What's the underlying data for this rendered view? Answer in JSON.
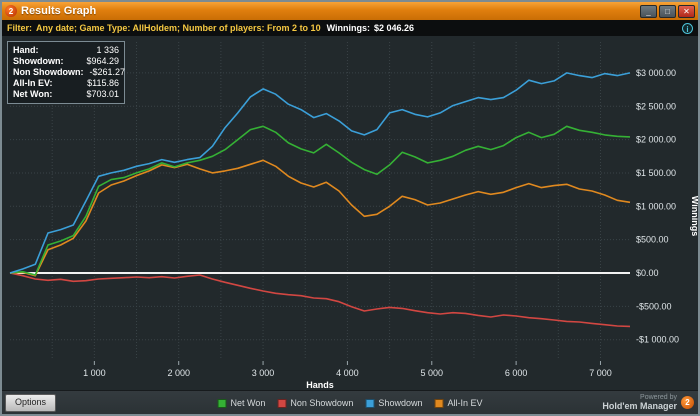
{
  "window": {
    "title": "Results Graph",
    "logo": "2",
    "buttons": {
      "minimize": "_",
      "maximize": "□",
      "close": "✕"
    }
  },
  "filter": {
    "label": "Filter:",
    "criteria": "Any date; Game Type: AllHoldem; Number of players: From 2 to 10",
    "winnings_label": "Winnings:",
    "winnings_value": "$2 046.26",
    "info_icon": "i"
  },
  "stats": {
    "rows": [
      {
        "label": "Hand:",
        "value": "1 336"
      },
      {
        "label": "Showdown:",
        "value": "$964.29"
      },
      {
        "label": "Non Showdown:",
        "value": "-$261.27"
      },
      {
        "label": "All-In EV:",
        "value": "$115.86"
      },
      {
        "label": "Net Won:",
        "value": "$703.01"
      }
    ]
  },
  "chart_data": {
    "type": "line",
    "title": "",
    "xlabel": "Hands",
    "ylabel": "Winnings",
    "xlim": [
      0,
      7350
    ],
    "ylim": [
      -1250,
      3450
    ],
    "grid": true,
    "zero_line": true,
    "legend_position": "bottom",
    "x_ticks": [
      1000,
      2000,
      3000,
      4000,
      5000,
      6000,
      7000
    ],
    "x_tick_labels": [
      "1 000",
      "2 000",
      "3 000",
      "4 000",
      "5 000",
      "6 000",
      "7 000"
    ],
    "y_ticks": [
      3000,
      2500,
      2000,
      1500,
      1000,
      500,
      0,
      -500,
      -1000
    ],
    "y_tick_labels": [
      "$3 000.00",
      "$2 500.00",
      "$2 000.00",
      "$1 500.00",
      "$1 000.00",
      "$500.00",
      "$0.00",
      "-$500.00",
      "-$1 000.00"
    ],
    "colors": {
      "grid": "#3a4347",
      "zero_line": "#f2f2f2",
      "background": "#22292c"
    },
    "draw_order": [
      1,
      3,
      0,
      2
    ],
    "series": [
      {
        "name": "Net Won",
        "color": "#35b135",
        "x": [
          0,
          150,
          300,
          450,
          600,
          750,
          900,
          1050,
          1200,
          1350,
          1500,
          1650,
          1800,
          1950,
          2100,
          2250,
          2400,
          2550,
          2700,
          2850,
          3000,
          3150,
          3300,
          3450,
          3600,
          3750,
          3900,
          4050,
          4200,
          4350,
          4500,
          4650,
          4800,
          4950,
          5100,
          5250,
          5400,
          5550,
          5700,
          5850,
          6000,
          6150,
          6300,
          6450,
          6600,
          6750,
          6900,
          7050,
          7200,
          7350
        ],
        "y": [
          0,
          20,
          -30,
          420,
          480,
          560,
          850,
          1300,
          1400,
          1430,
          1500,
          1560,
          1650,
          1590,
          1650,
          1690,
          1750,
          1850,
          2000,
          2150,
          2200,
          2110,
          1950,
          1860,
          1800,
          1930,
          1800,
          1660,
          1550,
          1480,
          1620,
          1810,
          1740,
          1650,
          1690,
          1750,
          1840,
          1900,
          1850,
          1910,
          2030,
          2110,
          2030,
          2080,
          2200,
          2140,
          2110,
          2070,
          2050,
          2040
        ]
      },
      {
        "name": "Non Showdown",
        "color": "#d24742",
        "x": [
          0,
          150,
          300,
          450,
          600,
          750,
          900,
          1050,
          1200,
          1350,
          1500,
          1650,
          1800,
          1950,
          2100,
          2250,
          2400,
          2550,
          2700,
          2850,
          3000,
          3150,
          3300,
          3450,
          3600,
          3750,
          3900,
          4050,
          4200,
          4350,
          4500,
          4650,
          4800,
          4950,
          5100,
          5250,
          5400,
          5550,
          5700,
          5850,
          6000,
          6150,
          6300,
          6450,
          6600,
          6750,
          6900,
          7050,
          7200,
          7350
        ],
        "y": [
          0,
          -40,
          -90,
          -110,
          -95,
          -125,
          -115,
          -90,
          -80,
          -70,
          -60,
          -70,
          -55,
          -75,
          -50,
          -30,
          -90,
          -140,
          -185,
          -230,
          -270,
          -305,
          -325,
          -340,
          -375,
          -385,
          -430,
          -505,
          -570,
          -540,
          -515,
          -530,
          -565,
          -595,
          -615,
          -595,
          -605,
          -635,
          -660,
          -630,
          -645,
          -670,
          -685,
          -705,
          -725,
          -735,
          -755,
          -775,
          -795,
          -800
        ]
      },
      {
        "name": "Showdown",
        "color": "#3b9fd8",
        "x": [
          0,
          150,
          300,
          450,
          600,
          750,
          900,
          1050,
          1200,
          1350,
          1500,
          1650,
          1800,
          1950,
          2100,
          2250,
          2400,
          2550,
          2700,
          2850,
          3000,
          3150,
          3300,
          3450,
          3600,
          3750,
          3900,
          4050,
          4200,
          4350,
          4500,
          4650,
          4800,
          4950,
          5100,
          5250,
          5400,
          5550,
          5700,
          5850,
          6000,
          6150,
          6300,
          6450,
          6600,
          6750,
          6900,
          7050,
          7200,
          7350
        ],
        "y": [
          0,
          60,
          130,
          600,
          650,
          720,
          1080,
          1450,
          1500,
          1540,
          1600,
          1640,
          1700,
          1660,
          1700,
          1730,
          1900,
          2180,
          2400,
          2640,
          2760,
          2680,
          2530,
          2450,
          2330,
          2390,
          2280,
          2130,
          2070,
          2150,
          2400,
          2450,
          2380,
          2340,
          2400,
          2510,
          2570,
          2630,
          2600,
          2630,
          2740,
          2890,
          2840,
          2880,
          3000,
          2960,
          2930,
          2990,
          2960,
          3000
        ]
      },
      {
        "name": "All-In EV",
        "color": "#e0891f",
        "x": [
          0,
          150,
          300,
          450,
          600,
          750,
          900,
          1050,
          1200,
          1350,
          1500,
          1650,
          1800,
          1950,
          2100,
          2250,
          2400,
          2550,
          2700,
          2850,
          3000,
          3150,
          3300,
          3450,
          3600,
          3750,
          3900,
          4050,
          4200,
          4350,
          4500,
          4650,
          4800,
          4950,
          5100,
          5250,
          5400,
          5550,
          5700,
          5850,
          6000,
          6150,
          6300,
          6450,
          6600,
          6750,
          6900,
          7050,
          7200,
          7350
        ],
        "y": [
          0,
          10,
          -40,
          350,
          420,
          520,
          780,
          1200,
          1320,
          1380,
          1460,
          1530,
          1620,
          1580,
          1630,
          1560,
          1500,
          1530,
          1570,
          1630,
          1690,
          1600,
          1450,
          1350,
          1290,
          1360,
          1230,
          1020,
          850,
          880,
          1000,
          1150,
          1100,
          1020,
          1050,
          1110,
          1170,
          1220,
          1180,
          1210,
          1280,
          1340,
          1280,
          1310,
          1330,
          1260,
          1230,
          1170,
          1090,
          1060
        ]
      }
    ]
  },
  "footer": {
    "options_label": "Options",
    "powered_by": "Powered by",
    "brand": "Hold'em Manager",
    "brand_badge": "2"
  }
}
